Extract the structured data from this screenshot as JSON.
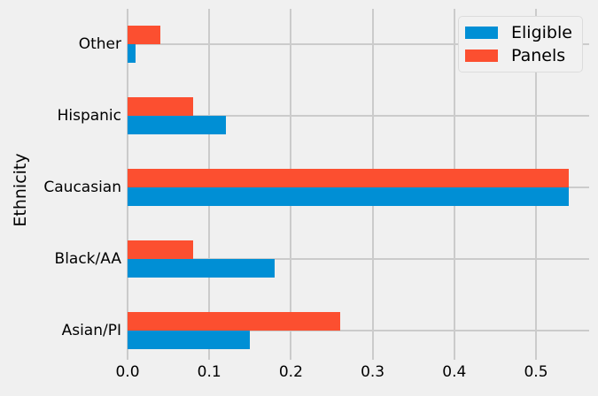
{
  "figure": {
    "background": "#f0f0f0",
    "grid_color": "#cbcbcb",
    "text_color": "#000000"
  },
  "y_axis_label": "Ethnicity",
  "legend": {
    "entries": [
      {
        "label": "Eligible",
        "color": "#008fd5"
      },
      {
        "label": "Panels",
        "color": "#fc4f30"
      }
    ]
  },
  "chart_data": {
    "type": "bar",
    "orientation": "horizontal",
    "title": "",
    "xlabel": "",
    "ylabel": "Ethnicity",
    "categories": [
      "Other",
      "Hispanic",
      "Caucasian",
      "Black/AA",
      "Asian/PI"
    ],
    "series": [
      {
        "name": "Eligible",
        "color": "#008fd5",
        "values": [
          0.01,
          0.12,
          0.54,
          0.18,
          0.15
        ]
      },
      {
        "name": "Panels",
        "color": "#fc4f30",
        "values": [
          0.04,
          0.08,
          0.54,
          0.08,
          0.26
        ]
      }
    ],
    "x_ticks": [
      0.0,
      0.1,
      0.2,
      0.3,
      0.4,
      0.5
    ],
    "x_tick_labels": [
      "0.0",
      "0.1",
      "0.2",
      "0.3",
      "0.4",
      "0.5"
    ],
    "xlim": [
      0,
      0.565
    ],
    "grid": true,
    "legend_position": "upper right",
    "style": "fivethirtyeight"
  }
}
